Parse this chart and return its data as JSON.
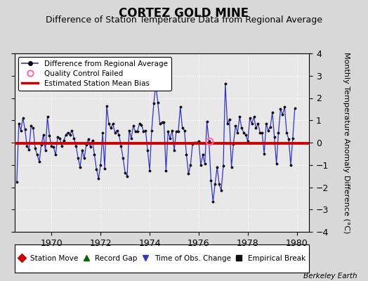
{
  "title": "CORTEZ GOLD MINE",
  "subtitle": "Difference of Station Temperature Data from Regional Average",
  "ylabel": "Monthly Temperature Anomaly Difference (°C)",
  "xlabel_years": [
    1970,
    1972,
    1974,
    1976,
    1978,
    1980
  ],
  "ylim": [
    -4,
    4
  ],
  "xlim": [
    1968.5,
    1980.5
  ],
  "background_color": "#d8d8d8",
  "plot_bg_color": "#e8e8e8",
  "line_color": "#3333cc",
  "marker_color": "#111111",
  "bias_color": "#cc0000",
  "bias_start": 1968.5,
  "bias_end": 1980.5,
  "bias_value": -0.04,
  "qc_fail_x": 1976.417,
  "qc_fail_y": 0.05,
  "monthly_data": [
    [
      1968.583,
      -1.75
    ],
    [
      1968.667,
      0.85
    ],
    [
      1968.75,
      0.55
    ],
    [
      1968.833,
      1.1
    ],
    [
      1968.917,
      0.6
    ],
    [
      1969.0,
      -0.15
    ],
    [
      1969.083,
      -0.3
    ],
    [
      1969.167,
      0.75
    ],
    [
      1969.25,
      0.65
    ],
    [
      1969.333,
      -0.25
    ],
    [
      1969.417,
      -0.55
    ],
    [
      1969.5,
      -0.85
    ],
    [
      1969.583,
      -0.1
    ],
    [
      1969.667,
      0.35
    ],
    [
      1969.75,
      -0.35
    ],
    [
      1969.833,
      1.15
    ],
    [
      1969.917,
      0.3
    ],
    [
      1970.0,
      -0.15
    ],
    [
      1970.083,
      -0.2
    ],
    [
      1970.167,
      -0.55
    ],
    [
      1970.25,
      0.25
    ],
    [
      1970.333,
      0.2
    ],
    [
      1970.417,
      -0.15
    ],
    [
      1970.5,
      0.1
    ],
    [
      1970.583,
      0.35
    ],
    [
      1970.667,
      0.45
    ],
    [
      1970.75,
      0.35
    ],
    [
      1970.833,
      0.55
    ],
    [
      1970.917,
      0.2
    ],
    [
      1971.0,
      -0.15
    ],
    [
      1971.083,
      -0.7
    ],
    [
      1971.167,
      -1.1
    ],
    [
      1971.25,
      -0.35
    ],
    [
      1971.333,
      -0.7
    ],
    [
      1971.417,
      -0.1
    ],
    [
      1971.5,
      0.15
    ],
    [
      1971.583,
      -0.2
    ],
    [
      1971.667,
      0.1
    ],
    [
      1971.75,
      -0.55
    ],
    [
      1971.833,
      -1.2
    ],
    [
      1971.917,
      -1.6
    ],
    [
      1972.0,
      -1.0
    ],
    [
      1972.083,
      0.45
    ],
    [
      1972.167,
      -1.15
    ],
    [
      1972.25,
      1.65
    ],
    [
      1972.333,
      0.85
    ],
    [
      1972.417,
      0.65
    ],
    [
      1972.5,
      0.85
    ],
    [
      1972.583,
      0.45
    ],
    [
      1972.667,
      0.55
    ],
    [
      1972.75,
      0.35
    ],
    [
      1972.833,
      -0.15
    ],
    [
      1972.917,
      -0.7
    ],
    [
      1973.0,
      -1.35
    ],
    [
      1973.083,
      -1.5
    ],
    [
      1973.167,
      0.55
    ],
    [
      1973.25,
      0.2
    ],
    [
      1973.333,
      0.75
    ],
    [
      1973.417,
      0.5
    ],
    [
      1973.5,
      0.5
    ],
    [
      1973.583,
      0.85
    ],
    [
      1973.667,
      0.8
    ],
    [
      1973.75,
      0.5
    ],
    [
      1973.833,
      0.55
    ],
    [
      1973.917,
      -0.35
    ],
    [
      1974.0,
      -1.25
    ],
    [
      1974.083,
      0.55
    ],
    [
      1974.167,
      1.75
    ],
    [
      1974.25,
      2.6
    ],
    [
      1974.333,
      1.8
    ],
    [
      1974.417,
      0.85
    ],
    [
      1974.5,
      0.9
    ],
    [
      1974.583,
      0.9
    ],
    [
      1974.667,
      -1.25
    ],
    [
      1974.75,
      0.5
    ],
    [
      1974.833,
      0.2
    ],
    [
      1974.917,
      0.55
    ],
    [
      1975.0,
      -0.35
    ],
    [
      1975.083,
      0.5
    ],
    [
      1975.167,
      0.5
    ],
    [
      1975.25,
      1.6
    ],
    [
      1975.333,
      0.65
    ],
    [
      1975.417,
      0.55
    ],
    [
      1975.5,
      -0.55
    ],
    [
      1975.583,
      -1.4
    ],
    [
      1975.667,
      -1.0
    ],
    [
      1975.75,
      -0.05
    ],
    [
      1975.833,
      0.0
    ],
    [
      1975.917,
      0.0
    ],
    [
      1976.0,
      0.05
    ],
    [
      1976.083,
      -1.0
    ],
    [
      1976.167,
      -0.55
    ],
    [
      1976.25,
      -0.95
    ],
    [
      1976.333,
      0.95
    ],
    [
      1976.417,
      0.05
    ],
    [
      1976.5,
      -1.7
    ],
    [
      1976.583,
      -2.65
    ],
    [
      1976.667,
      -1.85
    ],
    [
      1976.75,
      -1.1
    ],
    [
      1976.833,
      -1.85
    ],
    [
      1976.917,
      -2.15
    ],
    [
      1977.0,
      -1.05
    ],
    [
      1977.083,
      2.65
    ],
    [
      1977.167,
      0.85
    ],
    [
      1977.25,
      1.05
    ],
    [
      1977.333,
      -1.1
    ],
    [
      1977.417,
      -0.05
    ],
    [
      1977.5,
      0.75
    ],
    [
      1977.583,
      0.45
    ],
    [
      1977.667,
      1.15
    ],
    [
      1977.75,
      0.65
    ],
    [
      1977.833,
      0.45
    ],
    [
      1977.917,
      0.35
    ],
    [
      1978.0,
      0.05
    ],
    [
      1978.083,
      1.1
    ],
    [
      1978.167,
      0.85
    ],
    [
      1978.25,
      1.15
    ],
    [
      1978.333,
      0.65
    ],
    [
      1978.417,
      0.85
    ],
    [
      1978.5,
      0.45
    ],
    [
      1978.583,
      0.45
    ],
    [
      1978.667,
      -0.5
    ],
    [
      1978.75,
      0.85
    ],
    [
      1978.833,
      0.55
    ],
    [
      1978.917,
      0.7
    ],
    [
      1979.0,
      1.35
    ],
    [
      1979.083,
      0.25
    ],
    [
      1979.167,
      -0.95
    ],
    [
      1979.25,
      0.45
    ],
    [
      1979.333,
      1.5
    ],
    [
      1979.417,
      1.25
    ],
    [
      1979.5,
      1.6
    ],
    [
      1979.583,
      0.45
    ],
    [
      1979.667,
      0.15
    ],
    [
      1979.75,
      -1.0
    ],
    [
      1979.833,
      0.2
    ],
    [
      1979.917,
      1.55
    ]
  ],
  "legend1_items": [
    {
      "label": "Difference from Regional Average",
      "color": "#3333cc",
      "marker": "o",
      "linestyle": "-"
    },
    {
      "label": "Quality Control Failed",
      "color": "#ff69b4",
      "marker": "o",
      "linestyle": "none"
    },
    {
      "label": "Estimated Station Mean Bias",
      "color": "#cc0000",
      "marker": "none",
      "linestyle": "-"
    }
  ],
  "legend2_items": [
    {
      "label": "Station Move",
      "color": "#cc0000",
      "marker": "D"
    },
    {
      "label": "Record Gap",
      "color": "#006600",
      "marker": "^"
    },
    {
      "label": "Time of Obs. Change",
      "color": "#3333cc",
      "marker": "v"
    },
    {
      "label": "Empirical Break",
      "color": "#111111",
      "marker": "s"
    }
  ],
  "grid_color": "#ffffff",
  "title_fontsize": 12,
  "subtitle_fontsize": 9,
  "tick_fontsize": 9,
  "ylabel_fontsize": 8
}
